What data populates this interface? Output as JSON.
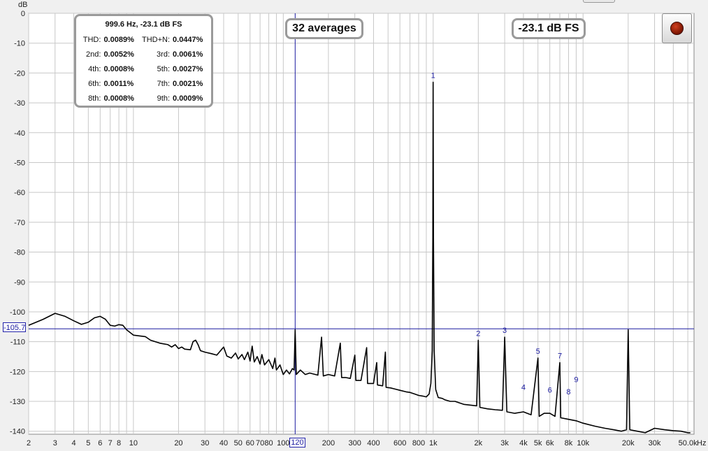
{
  "chart_data": {
    "type": "line",
    "ylabel": "dB",
    "xlabel": "Hz",
    "x_scale": "log",
    "xlim": [
      2,
      55000
    ],
    "ylim": [
      -141,
      0
    ],
    "grid": true,
    "y_ticks": [
      0,
      -10,
      -20,
      -30,
      -40,
      -50,
      -60,
      -70,
      -80,
      -90,
      -100,
      -110,
      -120,
      -130,
      -140
    ],
    "y_tick_labels": [
      "0",
      "-10",
      "-20",
      "-30",
      "-40",
      "-50",
      "-60",
      "-70",
      "-80",
      "-90",
      "-100",
      "-110",
      "-120",
      "-130",
      "-140"
    ],
    "x_ticks": [
      2,
      3,
      4,
      5,
      6,
      7,
      8,
      10,
      20,
      30,
      40,
      50,
      60,
      70,
      80,
      100,
      200,
      300,
      400,
      600,
      800,
      1000,
      2000,
      3000,
      4000,
      5000,
      6000,
      8000,
      10000,
      20000,
      30000,
      50000
    ],
    "x_tick_labels": [
      "2",
      "3",
      "4",
      "5",
      "6",
      "7",
      "8",
      "10",
      "20",
      "30",
      "40",
      "50",
      "60",
      "70",
      "80",
      "100",
      "200",
      "300",
      "400",
      "600",
      "800",
      "1k",
      "2k",
      "3k",
      "4k",
      "5k",
      "6k",
      "8k",
      "10k",
      "20k",
      "30k",
      "50.0k"
    ],
    "series": [
      {
        "color": "#000000",
        "points": [
          [
            2,
            -104.5
          ],
          [
            2.5,
            -102.5
          ],
          [
            3,
            -100.5
          ],
          [
            3.5,
            -101.5
          ],
          [
            4,
            -103
          ],
          [
            4.5,
            -104.2
          ],
          [
            5,
            -103.5
          ],
          [
            5.5,
            -102
          ],
          [
            6,
            -101.5
          ],
          [
            6.5,
            -102.5
          ],
          [
            7,
            -104.5
          ],
          [
            7.5,
            -104.8
          ],
          [
            8,
            -104.3
          ],
          [
            8.5,
            -104.5
          ],
          [
            9,
            -106
          ],
          [
            10,
            -107.8
          ],
          [
            12,
            -108.3
          ],
          [
            13,
            -109.5
          ],
          [
            15,
            -110.5
          ],
          [
            17,
            -111
          ],
          [
            18,
            -111.8
          ],
          [
            19,
            -111
          ],
          [
            20,
            -112.3
          ],
          [
            21,
            -111.8
          ],
          [
            22,
            -112.5
          ],
          [
            24,
            -112.7
          ],
          [
            25,
            -110
          ],
          [
            26,
            -109.5
          ],
          [
            27,
            -111
          ],
          [
            28,
            -113
          ],
          [
            30,
            -113.5
          ],
          [
            33,
            -114
          ],
          [
            36,
            -114.5
          ],
          [
            40,
            -111.8
          ],
          [
            42,
            -114.8
          ],
          [
            45,
            -115.5
          ],
          [
            48,
            -113.8
          ],
          [
            50,
            -115.8
          ],
          [
            53,
            -114.3
          ],
          [
            55,
            -116
          ],
          [
            58,
            -113.5
          ],
          [
            60,
            -116.5
          ],
          [
            62,
            -111.5
          ],
          [
            64,
            -116.8
          ],
          [
            67,
            -115
          ],
          [
            70,
            -117.5
          ],
          [
            72,
            -114.3
          ],
          [
            75,
            -117.8
          ],
          [
            80,
            -116
          ],
          [
            85,
            -119
          ],
          [
            88,
            -115.5
          ],
          [
            90,
            -119.5
          ],
          [
            95,
            -117.8
          ],
          [
            100,
            -121
          ],
          [
            105,
            -119.5
          ],
          [
            110,
            -120.8
          ],
          [
            115,
            -119
          ],
          [
            118,
            -119.5
          ],
          [
            120,
            -106
          ],
          [
            122,
            -121
          ],
          [
            130,
            -119.5
          ],
          [
            140,
            -121
          ],
          [
            150,
            -120.5
          ],
          [
            170,
            -121.2
          ],
          [
            180,
            -108.5
          ],
          [
            185,
            -121.5
          ],
          [
            200,
            -121
          ],
          [
            220,
            -121.5
          ],
          [
            240,
            -110.5
          ],
          [
            245,
            -122
          ],
          [
            260,
            -122
          ],
          [
            280,
            -122.3
          ],
          [
            300,
            -114.5
          ],
          [
            305,
            -123
          ],
          [
            330,
            -123
          ],
          [
            360,
            -112
          ],
          [
            365,
            -124
          ],
          [
            400,
            -124
          ],
          [
            420,
            -117
          ],
          [
            425,
            -124.5
          ],
          [
            460,
            -124.8
          ],
          [
            480,
            -113.5
          ],
          [
            485,
            -125.3
          ],
          [
            520,
            -125.5
          ],
          [
            550,
            -125.8
          ],
          [
            600,
            -126.3
          ],
          [
            660,
            -126.8
          ],
          [
            700,
            -127
          ],
          [
            750,
            -127.5
          ],
          [
            800,
            -128
          ],
          [
            850,
            -128.2
          ],
          [
            900,
            -128.5
          ],
          [
            940,
            -127.5
          ],
          [
            965,
            -124
          ],
          [
            985,
            -113
          ],
          [
            995,
            -75
          ],
          [
            999.6,
            -23.1
          ],
          [
            1005,
            -75
          ],
          [
            1015,
            -113
          ],
          [
            1040,
            -126
          ],
          [
            1080,
            -128.7
          ],
          [
            1150,
            -129
          ],
          [
            1200,
            -129.5
          ],
          [
            1300,
            -130
          ],
          [
            1400,
            -130
          ],
          [
            1500,
            -130.5
          ],
          [
            1600,
            -131
          ],
          [
            1800,
            -131.3
          ],
          [
            1950,
            -131.5
          ],
          [
            2000,
            -109.5
          ],
          [
            2050,
            -132
          ],
          [
            2300,
            -132.5
          ],
          [
            2600,
            -132.8
          ],
          [
            2900,
            -133
          ],
          [
            3000,
            -108.5
          ],
          [
            3100,
            -133.5
          ],
          [
            3500,
            -134
          ],
          [
            4000,
            -133.5
          ],
          [
            4500,
            -134.5
          ],
          [
            5000,
            -115.5
          ],
          [
            5100,
            -135
          ],
          [
            5500,
            -134
          ],
          [
            6000,
            -134
          ],
          [
            6500,
            -135
          ],
          [
            7000,
            -117
          ],
          [
            7100,
            -135.5
          ],
          [
            8000,
            -136
          ],
          [
            9000,
            -136.5
          ],
          [
            10000,
            -137.3
          ],
          [
            12000,
            -138.3
          ],
          [
            14000,
            -139
          ],
          [
            16000,
            -139.5
          ],
          [
            18000,
            -140
          ],
          [
            19500,
            -139.5
          ],
          [
            20000,
            -106
          ],
          [
            20500,
            -139.5
          ],
          [
            23000,
            -140
          ],
          [
            26000,
            -140.5
          ],
          [
            30000,
            -139
          ],
          [
            35000,
            -139.5
          ],
          [
            40000,
            -139.8
          ],
          [
            45000,
            -140
          ],
          [
            50000,
            -140.5
          ],
          [
            52000,
            -140.5
          ]
        ]
      }
    ],
    "harmonic_markers": [
      {
        "label": "1",
        "x": 999.6,
        "y": -23.1
      },
      {
        "label": "2",
        "x": 2000,
        "y": -109.5
      },
      {
        "label": "3",
        "x": 3000,
        "y": -108.5
      },
      {
        "label": "4",
        "x": 4000,
        "y": -127.5
      },
      {
        "label": "5",
        "x": 5000,
        "y": -115.5
      },
      {
        "label": "6",
        "x": 6000,
        "y": -128.5
      },
      {
        "label": "7",
        "x": 7000,
        "y": -117
      },
      {
        "label": "8",
        "x": 8000,
        "y": -129
      },
      {
        "label": "9",
        "x": 9000,
        "y": -125
      }
    ],
    "cursor": {
      "x": 120,
      "y": -105.7,
      "x_label": "120",
      "y_label": "-105.7"
    }
  },
  "overlays": {
    "averages": "32 averages",
    "level": "-23.1 dB FS",
    "distortion": {
      "title": "999.6 Hz, -23.1 dB FS",
      "rows": [
        {
          "l1": "THD:",
          "v1": "0.0089%",
          "l2": "THD+N:",
          "v2": "0.0447%"
        },
        {
          "l1": "2nd:",
          "v1": "0.0052%",
          "l2": "3rd:",
          "v2": "0.0061%"
        },
        {
          "l1": "4th:",
          "v1": "0.0008%",
          "l2": "5th:",
          "v2": "0.0027%"
        },
        {
          "l1": "6th:",
          "v1": "0.0011%",
          "l2": "7th:",
          "v2": "0.0021%"
        },
        {
          "l1": "8th:",
          "v1": "0.0008%",
          "l2": "9th:",
          "v2": "0.0009%"
        }
      ]
    }
  },
  "colors": {
    "trace": "#000000",
    "cursor": "#1a1aa0",
    "marker_text": "#1a1aa0",
    "grid": "#c8c8c8",
    "plot_background": "#ffffff"
  },
  "icons": {
    "record": "record-icon"
  }
}
